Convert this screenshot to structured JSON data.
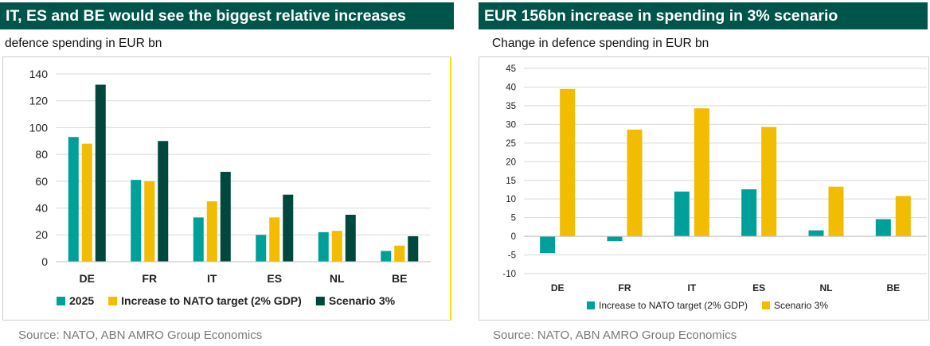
{
  "colors": {
    "teal": "#00a09a",
    "gold": "#f2bc00",
    "dark_green": "#00473e",
    "title_bg": "#00554a"
  },
  "left": {
    "title": "IT, ES and BE would see the biggest relative increases",
    "subtitle": "defence spending in EUR bn",
    "source": "Source: NATO, ABN AMRO Group Economics",
    "chart_data": {
      "type": "bar",
      "categories": [
        "DE",
        "FR",
        "IT",
        "ES",
        "NL",
        "BE"
      ],
      "series": [
        {
          "name": "2025",
          "color": "#00a09a",
          "values": [
            93,
            61,
            33,
            20,
            22,
            8
          ]
        },
        {
          "name": "Increase to NATO target (2% GDP)",
          "color": "#f2bc00",
          "values": [
            88,
            60,
            45,
            33,
            23,
            12
          ]
        },
        {
          "name": "Scenario 3%",
          "color": "#00473e",
          "values": [
            132,
            90,
            67,
            50,
            35,
            19
          ]
        }
      ],
      "ylim": [
        0,
        140
      ],
      "yticks": [
        "0",
        "20",
        "40",
        "60",
        "80",
        "100",
        "120",
        "140"
      ],
      "grid": true,
      "legend": "bottom"
    }
  },
  "right": {
    "title": "EUR 156bn increase in spending in 3% scenario",
    "subtitle": "Change in defence spending in EUR bn",
    "source": "Source:  NATO, ABN AMRO Group Economics",
    "chart_data": {
      "type": "bar",
      "categories": [
        "DE",
        "FR",
        "IT",
        "ES",
        "NL",
        "BE"
      ],
      "series": [
        {
          "name": "Increase to NATO target (2% GDP)",
          "color": "#00a09a",
          "values": [
            -4.5,
            -1.3,
            12.0,
            12.6,
            1.6,
            4.6
          ]
        },
        {
          "name": "Scenario 3%",
          "color": "#f2bc00",
          "values": [
            39.5,
            28.6,
            34.3,
            29.3,
            13.3,
            10.8
          ]
        }
      ],
      "ylim": [
        -10,
        45
      ],
      "yticks": [
        "-10",
        "-5",
        "0",
        "5",
        "10",
        "15",
        "20",
        "25",
        "30",
        "35",
        "40",
        "45"
      ],
      "grid": true,
      "legend": "bottom"
    }
  }
}
